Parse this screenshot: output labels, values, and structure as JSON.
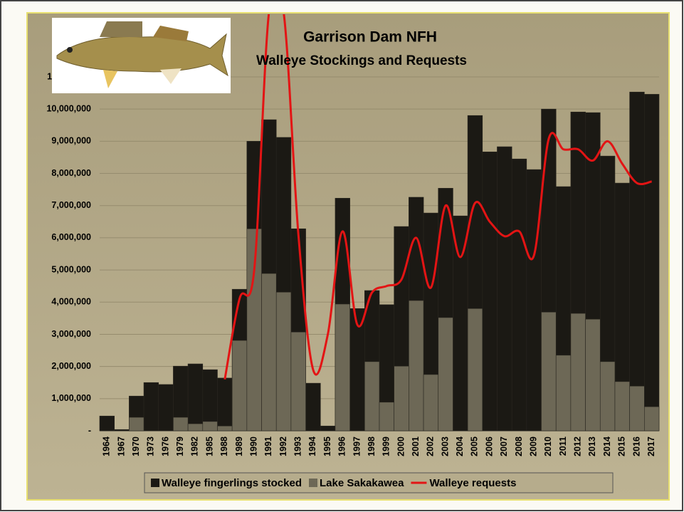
{
  "chart_data": {
    "type": "bar-line",
    "title": "Garrison Dam NFH",
    "subtitle": "Walleye Stockings and Requests",
    "categories": [
      "1964",
      "1967",
      "1970",
      "1973",
      "1976",
      "1979",
      "1982",
      "1985",
      "1988",
      "1989",
      "1990",
      "1991",
      "1992",
      "1993",
      "1994",
      "1995",
      "1996",
      "1997",
      "1998",
      "1999",
      "2000",
      "2001",
      "2002",
      "2003",
      "2004",
      "2005",
      "2006",
      "2007",
      "2008",
      "2009",
      "2010",
      "2011",
      "2012",
      "2013",
      "2014",
      "2015",
      "2016",
      "2017"
    ],
    "series": [
      {
        "name": "Walleye fingerlings stocked",
        "color": "#1b1914",
        "type": "bar",
        "values": [
          460000,
          40000,
          1080000,
          1500000,
          1440000,
          2010000,
          2080000,
          1900000,
          1640000,
          4400000,
          9000000,
          9670000,
          9120000,
          6280000,
          1480000,
          150000,
          7230000,
          3800000,
          4360000,
          3920000,
          6350000,
          7260000,
          6770000,
          7540000,
          6680000,
          9800000,
          8670000,
          8830000,
          8450000,
          8120000,
          10000000,
          7590000,
          9910000,
          9890000,
          8540000,
          7700000,
          10530000,
          10460000
        ]
      },
      {
        "name": "Lake Sakakawea",
        "color": "#6d6856",
        "type": "bar",
        "values": [
          0,
          0,
          420000,
          0,
          0,
          420000,
          220000,
          290000,
          150000,
          2810000,
          6280000,
          4890000,
          4310000,
          3070000,
          0,
          0,
          3940000,
          0,
          2150000,
          890000,
          2010000,
          4050000,
          1750000,
          3520000,
          0,
          3800000,
          0,
          0,
          0,
          0,
          3690000,
          2350000,
          3650000,
          3470000,
          2150000,
          1530000,
          1390000,
          750000
        ]
      },
      {
        "name": "Walleye requests",
        "color": "#e31414",
        "type": "line",
        "values": [
          null,
          null,
          null,
          null,
          null,
          null,
          null,
          null,
          1600000,
          4100000,
          5000000,
          13000000,
          13000000,
          6100000,
          1900000,
          3000000,
          6200000,
          3300000,
          4300000,
          4500000,
          4700000,
          6000000,
          4450000,
          7000000,
          5400000,
          7080000,
          6500000,
          6050000,
          6200000,
          5450000,
          9070000,
          8750000,
          8750000,
          8400000,
          9000000,
          8300000,
          7700000,
          7750000
        ]
      }
    ],
    "ylim": [
      0,
      11000000
    ],
    "yticks": [
      {
        "value": 0,
        "label": "-"
      },
      {
        "value": 1000000,
        "label": "1,000,000"
      },
      {
        "value": 2000000,
        "label": "2,000,000"
      },
      {
        "value": 3000000,
        "label": "3,000,000"
      },
      {
        "value": 4000000,
        "label": "4,000,000"
      },
      {
        "value": 5000000,
        "label": "5,000,000"
      },
      {
        "value": 6000000,
        "label": "6,000,000"
      },
      {
        "value": 7000000,
        "label": "7,000,000"
      },
      {
        "value": 8000000,
        "label": "8,000,000"
      },
      {
        "value": 9000000,
        "label": "9,000,000"
      },
      {
        "value": 10000000,
        "label": "10,000,000"
      },
      {
        "value": 11000000,
        "label": "11,000,000"
      }
    ],
    "grid": true
  }
}
